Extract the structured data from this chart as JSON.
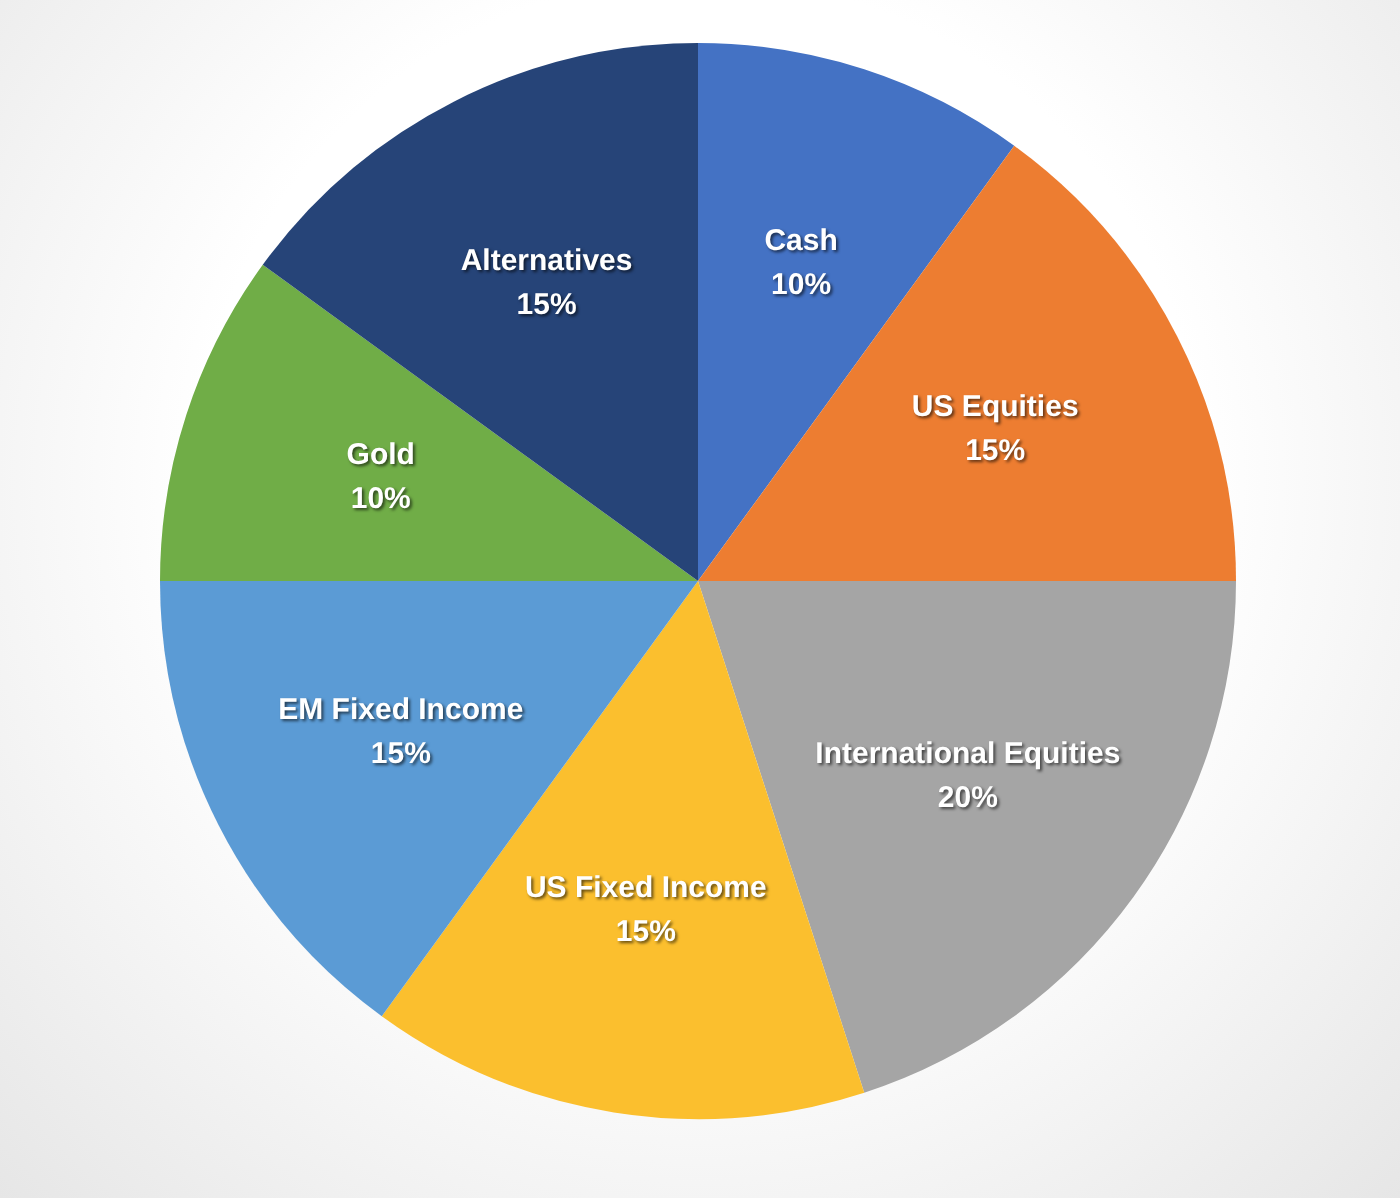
{
  "chart_data": {
    "type": "pie",
    "categories": [
      "Cash",
      "US Equities",
      "International Equities",
      "US Fixed Income",
      "EM Fixed Income",
      "Gold",
      "Alternatives"
    ],
    "values": [
      10,
      15,
      20,
      15,
      15,
      10,
      15
    ],
    "value_labels": [
      "10%",
      "15%",
      "20%",
      "15%",
      "15%",
      "10%",
      "15%"
    ],
    "colors": [
      "#4472c4",
      "#ed7d31",
      "#a5a5a5",
      "#fbbf2e",
      "#5b9bd5",
      "#70ad47",
      "#264478"
    ],
    "legend": false
  }
}
